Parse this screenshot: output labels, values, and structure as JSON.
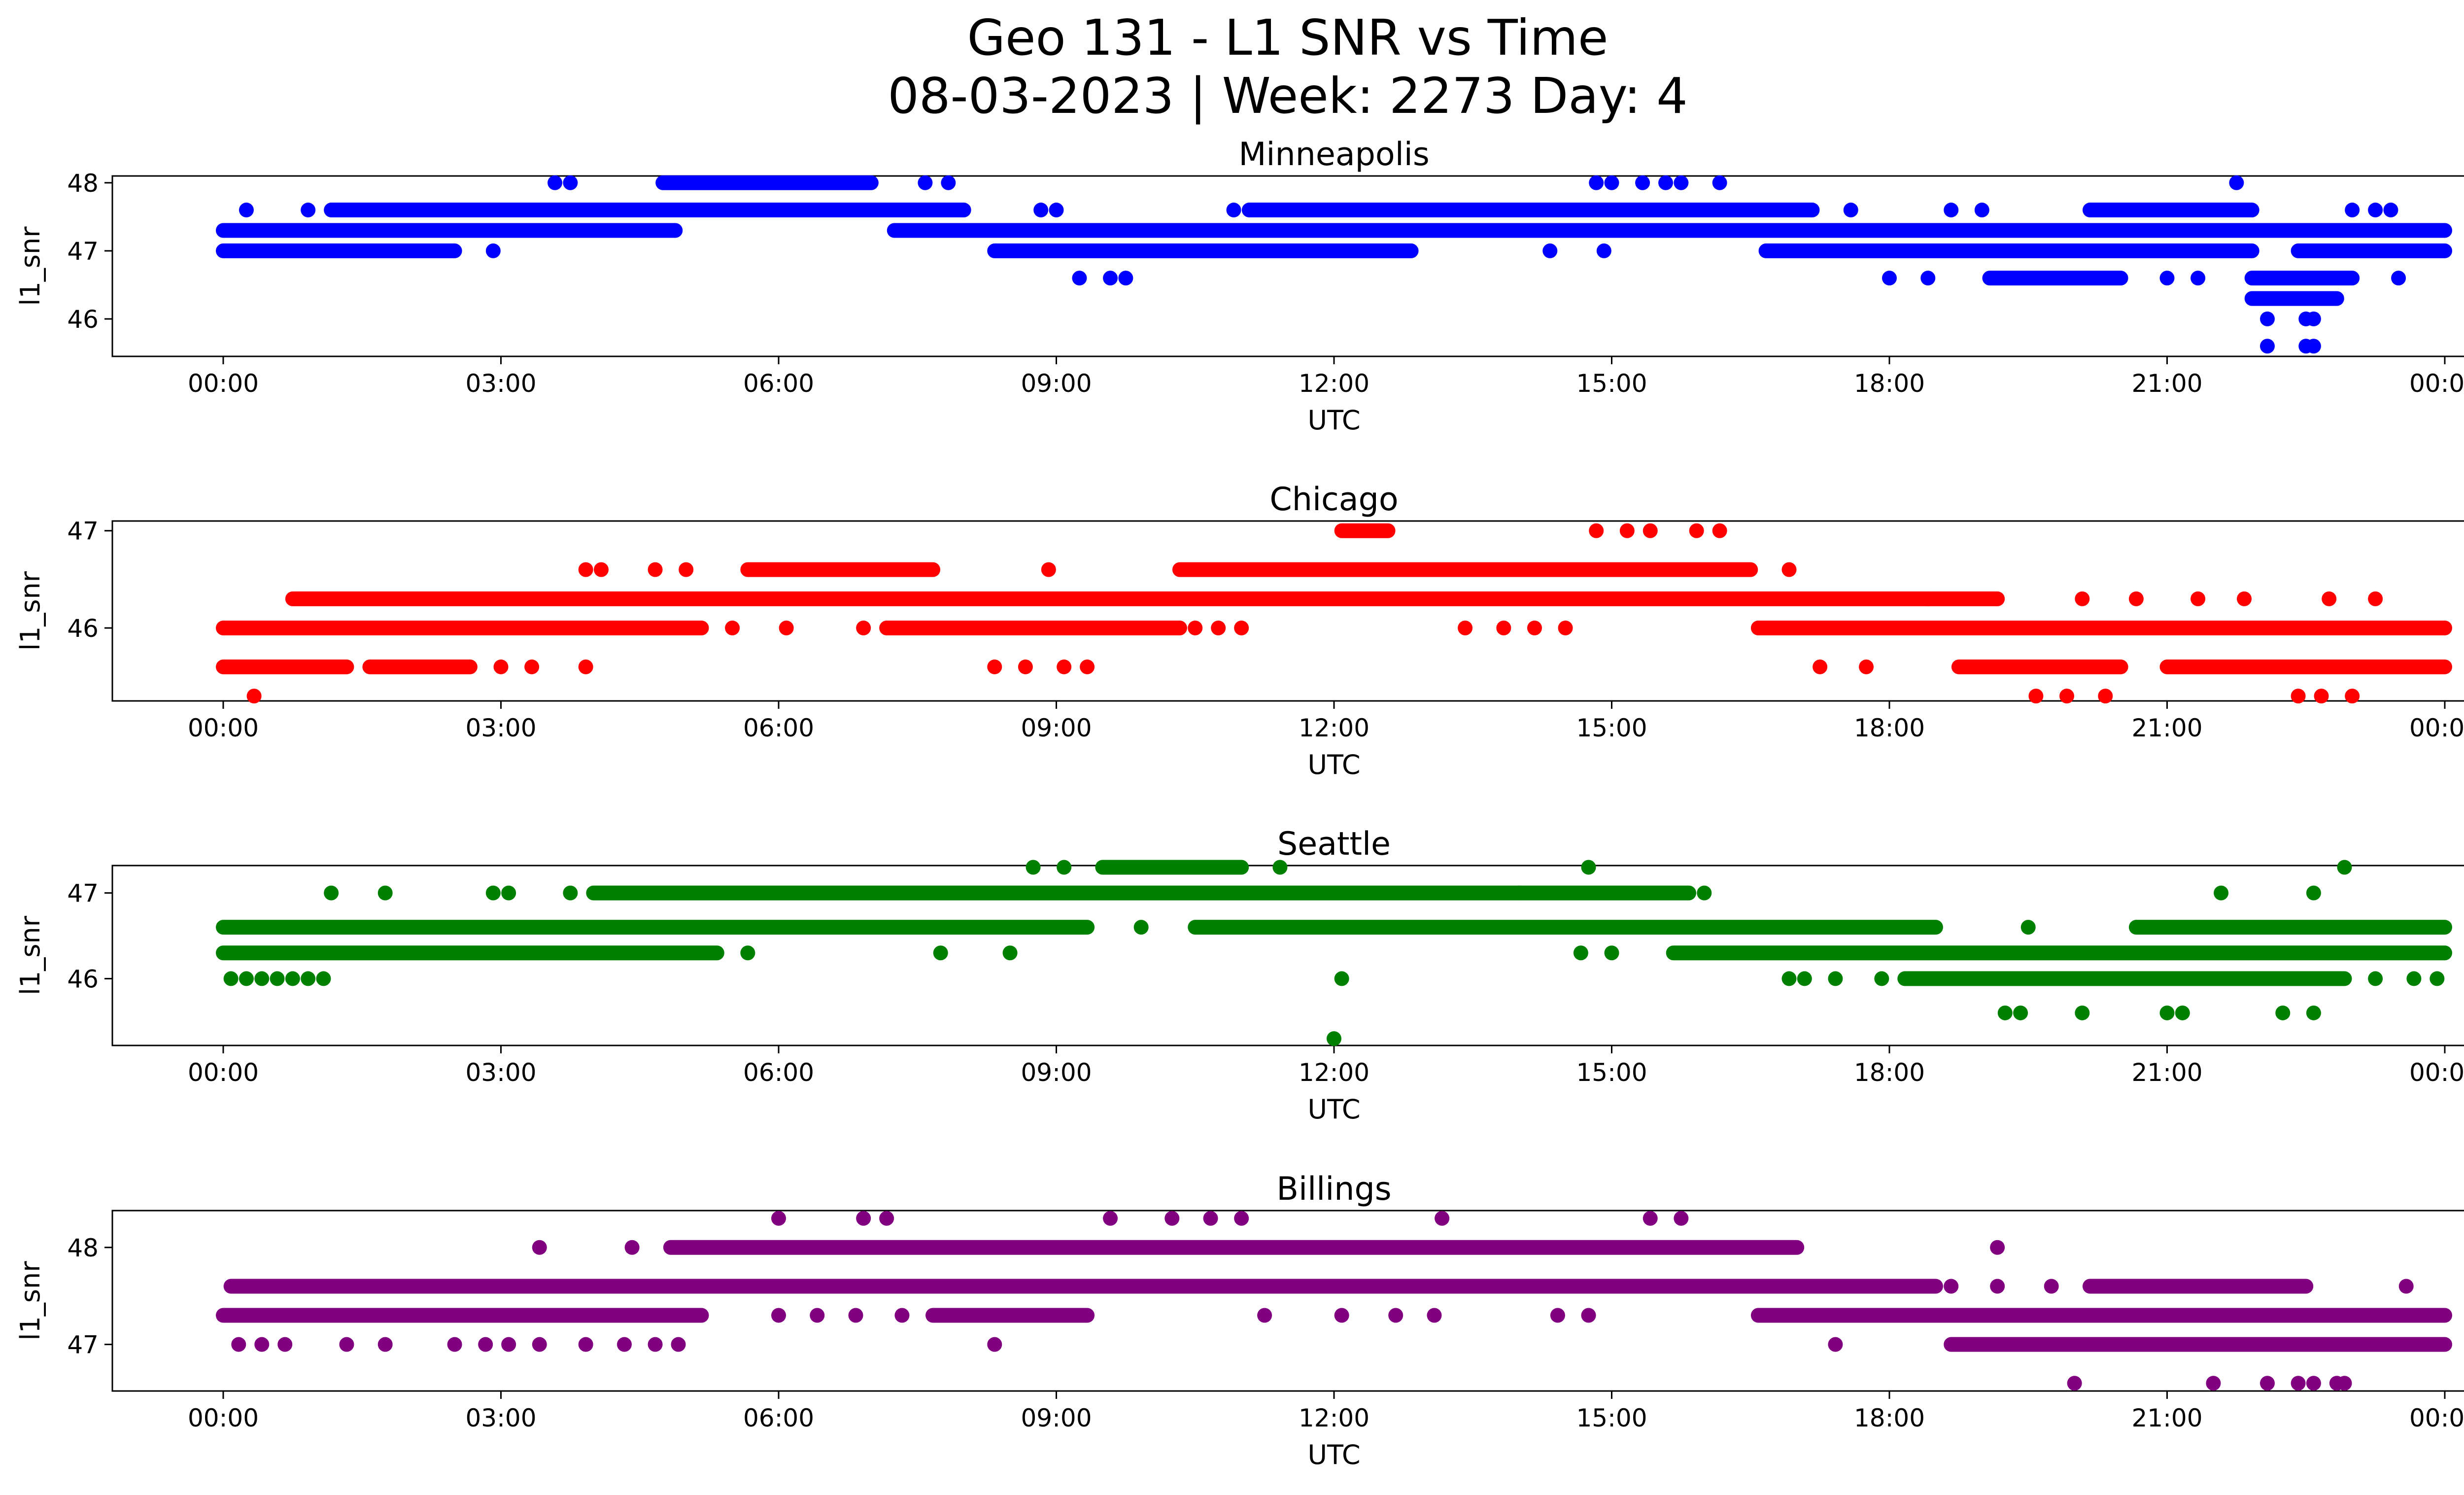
{
  "figure": {
    "title_line1": "Geo 131 - L1 SNR vs Time",
    "title_line2": "08-03-2023 | Week: 2273 Day: 4"
  },
  "chart_data": [
    {
      "type": "scatter",
      "title": "Minneapolis",
      "xlabel": "UTC",
      "ylabel": "l1_snr",
      "color": "#0000ff",
      "xlim": [
        "-00:24",
        "00:24 (+1 day)"
      ],
      "ylim": [
        45.45,
        48.1
      ],
      "xticks": [
        "00:00",
        "03:00",
        "06:00",
        "09:00",
        "12:00",
        "15:00",
        "18:00",
        "21:00",
        "00:00"
      ],
      "yticks": [
        46,
        47,
        48
      ],
      "runs": [
        {
          "y": 47.3,
          "from": "00:00",
          "to": "04:53"
        },
        {
          "y": 47.3,
          "from": "07:15",
          "to": "24:00"
        },
        {
          "y": 47.0,
          "from": "00:00",
          "to": "02:30"
        },
        {
          "y": 47.0,
          "from": "08:20",
          "to": "12:50"
        },
        {
          "y": 47.0,
          "from": "16:40",
          "to": "21:55"
        },
        {
          "y": 47.0,
          "from": "22:25",
          "to": "24:00"
        },
        {
          "y": 47.6,
          "from": "01:10",
          "to": "08:00"
        },
        {
          "y": 47.6,
          "from": "11:05",
          "to": "12:45"
        },
        {
          "y": 47.6,
          "from": "12:45",
          "to": "17:10"
        },
        {
          "y": 47.6,
          "from": "20:10",
          "to": "21:55"
        },
        {
          "y": 48.0,
          "from": "04:45",
          "to": "07:00"
        },
        {
          "y": 46.6,
          "from": "19:05",
          "to": "20:30"
        },
        {
          "y": 46.6,
          "from": "21:55",
          "to": "23:00"
        },
        {
          "y": 46.3,
          "from": "21:55",
          "to": "22:50"
        }
      ],
      "points": [
        {
          "x": "00:15",
          "y": 47.6
        },
        {
          "x": "00:55",
          "y": 47.6
        },
        {
          "x": "02:55",
          "y": 47.0
        },
        {
          "x": "03:35",
          "y": 48.0
        },
        {
          "x": "03:45",
          "y": 48.0
        },
        {
          "x": "07:35",
          "y": 48.0
        },
        {
          "x": "07:50",
          "y": 48.0
        },
        {
          "x": "08:50",
          "y": 47.6
        },
        {
          "x": "09:00",
          "y": 47.6
        },
        {
          "x": "09:15",
          "y": 46.6
        },
        {
          "x": "09:35",
          "y": 46.6
        },
        {
          "x": "09:45",
          "y": 46.6
        },
        {
          "x": "10:55",
          "y": 47.6
        },
        {
          "x": "14:20",
          "y": 47.0
        },
        {
          "x": "14:55",
          "y": 47.0
        },
        {
          "x": "14:50",
          "y": 48.0
        },
        {
          "x": "15:00",
          "y": 48.0
        },
        {
          "x": "15:20",
          "y": 48.0
        },
        {
          "x": "15:35",
          "y": 48.0
        },
        {
          "x": "15:45",
          "y": 48.0
        },
        {
          "x": "16:10",
          "y": 48.0
        },
        {
          "x": "17:35",
          "y": 47.6
        },
        {
          "x": "18:00",
          "y": 46.6
        },
        {
          "x": "18:25",
          "y": 46.6
        },
        {
          "x": "18:40",
          "y": 47.6
        },
        {
          "x": "19:00",
          "y": 47.6
        },
        {
          "x": "21:00",
          "y": 46.6
        },
        {
          "x": "21:20",
          "y": 46.6
        },
        {
          "x": "21:45",
          "y": 48.0
        },
        {
          "x": "22:05",
          "y": 46.0
        },
        {
          "x": "22:30",
          "y": 46.0
        },
        {
          "x": "22:35",
          "y": 46.0
        },
        {
          "x": "22:05",
          "y": 45.6
        },
        {
          "x": "22:30",
          "y": 45.6
        },
        {
          "x": "22:35",
          "y": 45.6
        },
        {
          "x": "23:00",
          "y": 47.6
        },
        {
          "x": "23:15",
          "y": 47.6
        },
        {
          "x": "23:25",
          "y": 47.6
        },
        {
          "x": "23:30",
          "y": 46.6
        }
      ]
    },
    {
      "type": "scatter",
      "title": "Chicago",
      "xlabel": "UTC",
      "ylabel": "l1_snr",
      "color": "#ff0000",
      "xlim": [
        "-00:24",
        "00:24 (+1 day)"
      ],
      "ylim": [
        45.25,
        47.1
      ],
      "xticks": [
        "00:00",
        "03:00",
        "06:00",
        "09:00",
        "12:00",
        "15:00",
        "18:00",
        "21:00",
        "00:00"
      ],
      "yticks": [
        46,
        47
      ],
      "runs": [
        {
          "y": 46.0,
          "from": "00:00",
          "to": "05:10"
        },
        {
          "y": 46.0,
          "from": "07:10",
          "to": "10:20"
        },
        {
          "y": 46.0,
          "from": "16:35",
          "to": "24:00"
        },
        {
          "y": 46.3,
          "from": "00:45",
          "to": "18:25"
        },
        {
          "y": 46.3,
          "from": "18:25",
          "to": "19:10"
        },
        {
          "y": 45.6,
          "from": "00:00",
          "to": "01:20"
        },
        {
          "y": 45.6,
          "from": "01:35",
          "to": "02:40"
        },
        {
          "y": 45.6,
          "from": "18:45",
          "to": "20:30"
        },
        {
          "y": 45.6,
          "from": "21:00",
          "to": "24:00"
        },
        {
          "y": 46.6,
          "from": "05:40",
          "to": "07:40"
        },
        {
          "y": 46.6,
          "from": "10:20",
          "to": "16:30"
        },
        {
          "y": 47.0,
          "from": "12:05",
          "to": "12:35"
        }
      ],
      "points": [
        {
          "x": "00:20",
          "y": 45.3
        },
        {
          "x": "03:00",
          "y": 45.6
        },
        {
          "x": "03:20",
          "y": 45.6
        },
        {
          "x": "03:55",
          "y": 45.6
        },
        {
          "x": "03:55",
          "y": 46.6
        },
        {
          "x": "04:05",
          "y": 46.6
        },
        {
          "x": "04:40",
          "y": 46.6
        },
        {
          "x": "05:00",
          "y": 46.6
        },
        {
          "x": "05:30",
          "y": 46.0
        },
        {
          "x": "06:05",
          "y": 46.0
        },
        {
          "x": "06:55",
          "y": 46.0
        },
        {
          "x": "08:20",
          "y": 45.6
        },
        {
          "x": "08:40",
          "y": 45.6
        },
        {
          "x": "08:55",
          "y": 46.6
        },
        {
          "x": "09:05",
          "y": 45.6
        },
        {
          "x": "09:20",
          "y": 45.6
        },
        {
          "x": "10:30",
          "y": 46.0
        },
        {
          "x": "10:45",
          "y": 46.0
        },
        {
          "x": "11:00",
          "y": 46.0
        },
        {
          "x": "13:25",
          "y": 46.0
        },
        {
          "x": "13:50",
          "y": 46.0
        },
        {
          "x": "14:10",
          "y": 46.0
        },
        {
          "x": "14:30",
          "y": 46.0
        },
        {
          "x": "14:50",
          "y": 47.0
        },
        {
          "x": "15:10",
          "y": 47.0
        },
        {
          "x": "15:25",
          "y": 47.0
        },
        {
          "x": "15:55",
          "y": 47.0
        },
        {
          "x": "16:10",
          "y": 47.0
        },
        {
          "x": "16:55",
          "y": 46.6
        },
        {
          "x": "17:15",
          "y": 45.6
        },
        {
          "x": "17:45",
          "y": 45.6
        },
        {
          "x": "19:35",
          "y": 45.3
        },
        {
          "x": "19:55",
          "y": 45.3
        },
        {
          "x": "20:20",
          "y": 45.3
        },
        {
          "x": "20:05",
          "y": 46.3
        },
        {
          "x": "20:40",
          "y": 46.3
        },
        {
          "x": "21:20",
          "y": 46.3
        },
        {
          "x": "21:50",
          "y": 46.3
        },
        {
          "x": "22:25",
          "y": 45.3
        },
        {
          "x": "22:40",
          "y": 45.3
        },
        {
          "x": "23:00",
          "y": 45.3
        },
        {
          "x": "22:45",
          "y": 46.3
        },
        {
          "x": "23:15",
          "y": 46.3
        }
      ]
    },
    {
      "type": "scatter",
      "title": "Seattle",
      "xlabel": "UTC",
      "ylabel": "l1_snr",
      "color": "#008000",
      "xlim": [
        "-00:24",
        "00:24 (+1 day)"
      ],
      "ylim": [
        45.22,
        47.32
      ],
      "xticks": [
        "00:00",
        "03:00",
        "06:00",
        "09:00",
        "12:00",
        "15:00",
        "18:00",
        "21:00",
        "00:00"
      ],
      "yticks": [
        46,
        47
      ],
      "runs": [
        {
          "y": 46.6,
          "from": "00:00",
          "to": "09:20"
        },
        {
          "y": 46.6,
          "from": "10:30",
          "to": "18:30"
        },
        {
          "y": 46.6,
          "from": "20:40",
          "to": "24:00"
        },
        {
          "y": 46.3,
          "from": "00:00",
          "to": "05:20"
        },
        {
          "y": 46.3,
          "from": "15:40",
          "to": "24:00"
        },
        {
          "y": 46.0,
          "from": "18:10",
          "to": "22:55"
        },
        {
          "y": 47.0,
          "from": "04:00",
          "to": "15:50"
        },
        {
          "y": 47.3,
          "from": "09:30",
          "to": "11:00"
        }
      ],
      "points": [
        {
          "x": "00:05",
          "y": 46.0
        },
        {
          "x": "00:15",
          "y": 46.0
        },
        {
          "x": "00:25",
          "y": 46.0
        },
        {
          "x": "00:35",
          "y": 46.0
        },
        {
          "x": "00:45",
          "y": 46.0
        },
        {
          "x": "00:55",
          "y": 46.0
        },
        {
          "x": "01:05",
          "y": 46.0
        },
        {
          "x": "01:10",
          "y": 47.0
        },
        {
          "x": "01:45",
          "y": 47.0
        },
        {
          "x": "02:55",
          "y": 47.0
        },
        {
          "x": "03:05",
          "y": 47.0
        },
        {
          "x": "03:45",
          "y": 47.0
        },
        {
          "x": "05:40",
          "y": 46.3
        },
        {
          "x": "07:45",
          "y": 46.3
        },
        {
          "x": "08:30",
          "y": 46.3
        },
        {
          "x": "08:45",
          "y": 47.3
        },
        {
          "x": "09:05",
          "y": 47.3
        },
        {
          "x": "09:55",
          "y": 46.6
        },
        {
          "x": "11:25",
          "y": 47.3
        },
        {
          "x": "12:00",
          "y": 45.3
        },
        {
          "x": "12:05",
          "y": 46.0
        },
        {
          "x": "14:00",
          "y": 47.0
        },
        {
          "x": "14:40",
          "y": 46.3
        },
        {
          "x": "14:45",
          "y": 47.3
        },
        {
          "x": "15:00",
          "y": 46.3
        },
        {
          "x": "16:00",
          "y": 47.0
        },
        {
          "x": "16:55",
          "y": 46.0
        },
        {
          "x": "17:05",
          "y": 46.0
        },
        {
          "x": "17:25",
          "y": 46.0
        },
        {
          "x": "17:55",
          "y": 46.0
        },
        {
          "x": "19:15",
          "y": 45.6
        },
        {
          "x": "19:25",
          "y": 45.6
        },
        {
          "x": "19:30",
          "y": 46.6
        },
        {
          "x": "20:05",
          "y": 45.6
        },
        {
          "x": "21:00",
          "y": 45.6
        },
        {
          "x": "21:10",
          "y": 45.6
        },
        {
          "x": "21:35",
          "y": 47.0
        },
        {
          "x": "22:15",
          "y": 45.6
        },
        {
          "x": "22:35",
          "y": 45.6
        },
        {
          "x": "22:35",
          "y": 47.0
        },
        {
          "x": "22:55",
          "y": 47.3
        },
        {
          "x": "23:15",
          "y": 46.0
        },
        {
          "x": "23:40",
          "y": 46.0
        },
        {
          "x": "23:55",
          "y": 46.0
        }
      ]
    },
    {
      "type": "scatter",
      "title": "Billings",
      "xlabel": "UTC",
      "ylabel": "l1_snr",
      "color": "#800080",
      "xlim": [
        "-00:24",
        "00:24 (+1 day)"
      ],
      "ylim": [
        46.52,
        48.38
      ],
      "xticks": [
        "00:00",
        "03:00",
        "06:00",
        "09:00",
        "12:00",
        "15:00",
        "18:00",
        "21:00",
        "00:00"
      ],
      "yticks": [
        47,
        48
      ],
      "runs": [
        {
          "y": 47.6,
          "from": "00:05",
          "to": "18:30"
        },
        {
          "y": 47.6,
          "from": "20:10",
          "to": "22:30"
        },
        {
          "y": 47.3,
          "from": "00:00",
          "to": "05:10"
        },
        {
          "y": 47.3,
          "from": "07:40",
          "to": "09:20"
        },
        {
          "y": 47.3,
          "from": "16:35",
          "to": "24:00"
        },
        {
          "y": 47.0,
          "from": "18:40",
          "to": "24:00"
        },
        {
          "y": 48.0,
          "from": "04:50",
          "to": "17:00"
        }
      ],
      "points": [
        {
          "x": "00:10",
          "y": 47.0
        },
        {
          "x": "00:25",
          "y": 47.0
        },
        {
          "x": "00:40",
          "y": 47.0
        },
        {
          "x": "01:20",
          "y": 47.0
        },
        {
          "x": "01:45",
          "y": 47.0
        },
        {
          "x": "02:30",
          "y": 47.0
        },
        {
          "x": "02:50",
          "y": 47.0
        },
        {
          "x": "03:05",
          "y": 47.0
        },
        {
          "x": "03:25",
          "y": 47.0
        },
        {
          "x": "03:55",
          "y": 47.0
        },
        {
          "x": "04:20",
          "y": 47.0
        },
        {
          "x": "04:40",
          "y": 47.0
        },
        {
          "x": "04:55",
          "y": 47.0
        },
        {
          "x": "03:25",
          "y": 48.0
        },
        {
          "x": "04:25",
          "y": 48.0
        },
        {
          "x": "06:00",
          "y": 48.3
        },
        {
          "x": "06:55",
          "y": 48.3
        },
        {
          "x": "07:10",
          "y": 48.3
        },
        {
          "x": "06:00",
          "y": 47.3
        },
        {
          "x": "06:25",
          "y": 47.3
        },
        {
          "x": "06:50",
          "y": 47.3
        },
        {
          "x": "07:20",
          "y": 47.3
        },
        {
          "x": "08:20",
          "y": 47.0
        },
        {
          "x": "09:35",
          "y": 48.3
        },
        {
          "x": "10:15",
          "y": 48.3
        },
        {
          "x": "10:40",
          "y": 48.3
        },
        {
          "x": "11:00",
          "y": 48.3
        },
        {
          "x": "11:15",
          "y": 47.3
        },
        {
          "x": "12:05",
          "y": 47.3
        },
        {
          "x": "12:40",
          "y": 47.3
        },
        {
          "x": "13:05",
          "y": 47.3
        },
        {
          "x": "13:10",
          "y": 48.3
        },
        {
          "x": "14:25",
          "y": 47.3
        },
        {
          "x": "14:45",
          "y": 47.3
        },
        {
          "x": "15:25",
          "y": 48.3
        },
        {
          "x": "15:45",
          "y": 48.3
        },
        {
          "x": "17:25",
          "y": 47.0
        },
        {
          "x": "18:40",
          "y": 47.6
        },
        {
          "x": "19:10",
          "y": 47.6
        },
        {
          "x": "19:10",
          "y": 48.0
        },
        {
          "x": "19:45",
          "y": 47.6
        },
        {
          "x": "20:00",
          "y": 46.6
        },
        {
          "x": "21:30",
          "y": 46.6
        },
        {
          "x": "22:05",
          "y": 46.6
        },
        {
          "x": "22:25",
          "y": 46.6
        },
        {
          "x": "22:35",
          "y": 46.6
        },
        {
          "x": "22:50",
          "y": 46.6
        },
        {
          "x": "22:55",
          "y": 46.6
        },
        {
          "x": "23:35",
          "y": 47.6
        }
      ]
    }
  ]
}
